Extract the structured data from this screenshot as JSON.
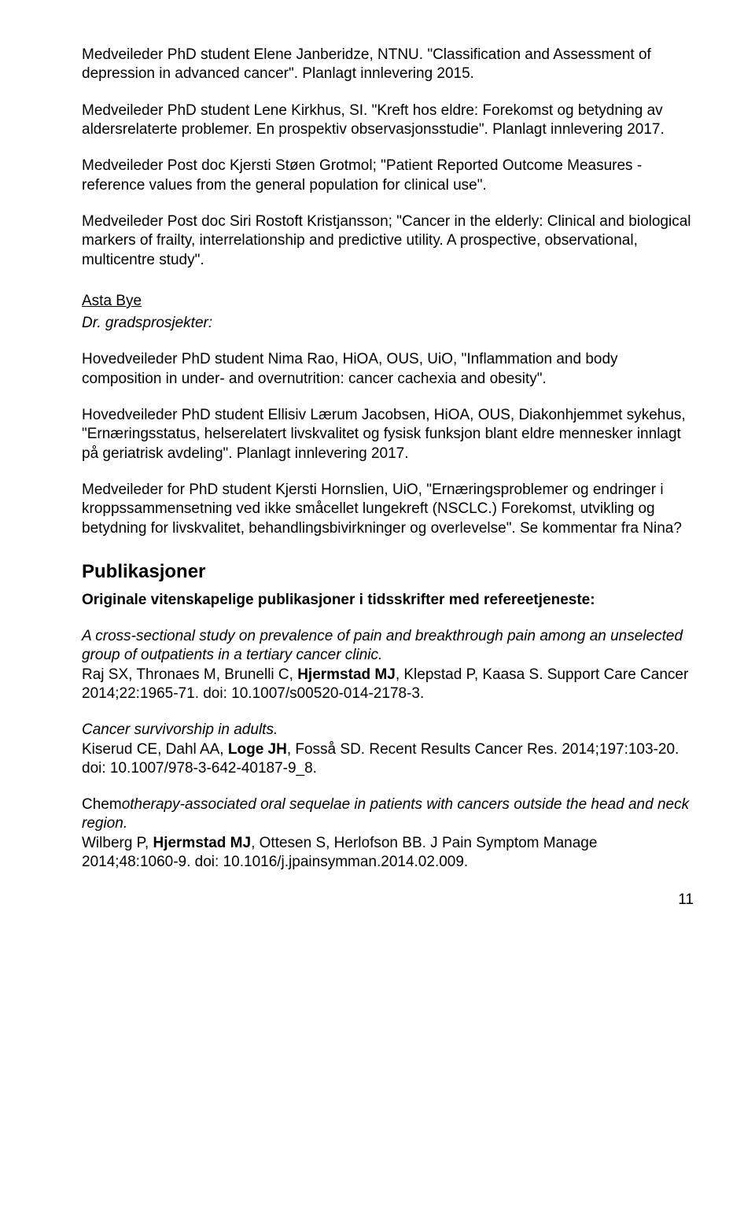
{
  "p1": "Medveileder PhD student Elene Janberidze, NTNU. \"Classification and Assessment of depression in advanced cancer\". Planlagt innlevering 2015.",
  "p2": "Medveileder PhD student Lene Kirkhus, SI. \"Kreft hos eldre: Forekomst og betydning av aldersrelaterte problemer. En prospektiv observasjonsstudie\". Planlagt innlevering 2017.",
  "p3": "Medveileder Post doc Kjersti Støen Grotmol; \"Patient Reported Outcome Measures - reference values from the general population for clinical use\".",
  "p4": "Medveileder Post doc Siri Rostoft Kristjansson; \"Cancer in the elderly: Clinical and biological markers of frailty, interrelationship and predictive utility. A prospective, observational, multicentre study\".",
  "asta_name": "Asta Bye",
  "asta_line": "Dr. gradsprosjekter:",
  "p5": "Hovedveileder PhD student Nima Rao, HiOA, OUS, UiO, \"Inflammation and body composition in under- and overnutrition: cancer cachexia and obesity\".",
  "p6": "Hovedveileder PhD student Ellisiv Lærum Jacobsen, HiOA, OUS, Diakonhjemmet sykehus, \"Ernæringsstatus, helserelatert livskvalitet og fysisk funksjon blant eldre mennesker innlagt på geriatrisk avdeling\". Planlagt innlevering 2017.",
  "p7": "Medveileder for PhD student Kjersti Hornslien, UiO, \"Ernæringsproblemer og endringer i kroppssammensetning ved ikke småcellet lungekreft (NSCLC.) Forekomst, utvikling og betydning for livskvalitet, behandlingsbivirkninger og overlevelse\". Se kommentar fra Nina?",
  "h2": "Publikasjoner",
  "sub": "Originale vitenskapelige publikasjoner i tidsskrifter med refereetjeneste:",
  "pub1_title": "A cross-sectional study on prevalence of pain and breakthrough pain among an unselected group of outpatients in a tertiary cancer clinic.",
  "pub1_a1": "Raj SX, Thronaes M, Brunelli C, ",
  "pub1_bold": "Hjermstad MJ",
  "pub1_a2": ", Klepstad P, Kaasa S. Support Care Cancer 2014;22:1965-71. doi: 10.1007/s00520-014-2178-3.",
  "pub2_title": "Cancer survivorship in adults.",
  "pub2_a1": "Kiserud CE, Dahl AA, ",
  "pub2_bold": "Loge JH",
  "pub2_a2": ", Fosså SD. Recent Results Cancer Res. 2014;197:103-20. doi: 10.1007/978-3-642-40187-9_8.",
  "pub3_t1": "Chem",
  "pub3_t2": "otherapy-associated oral sequelae in patients with cancers outside the head and neck region.",
  "pub3_a1": "Wilberg P, ",
  "pub3_bold": "Hjermstad MJ",
  "pub3_a2": ", Ottesen S, Herlofson BB. J Pain Symptom Manage 2014;48:1060-9. doi: 10.1016/j.jpainsymman.2014.02.009.",
  "page": "11"
}
